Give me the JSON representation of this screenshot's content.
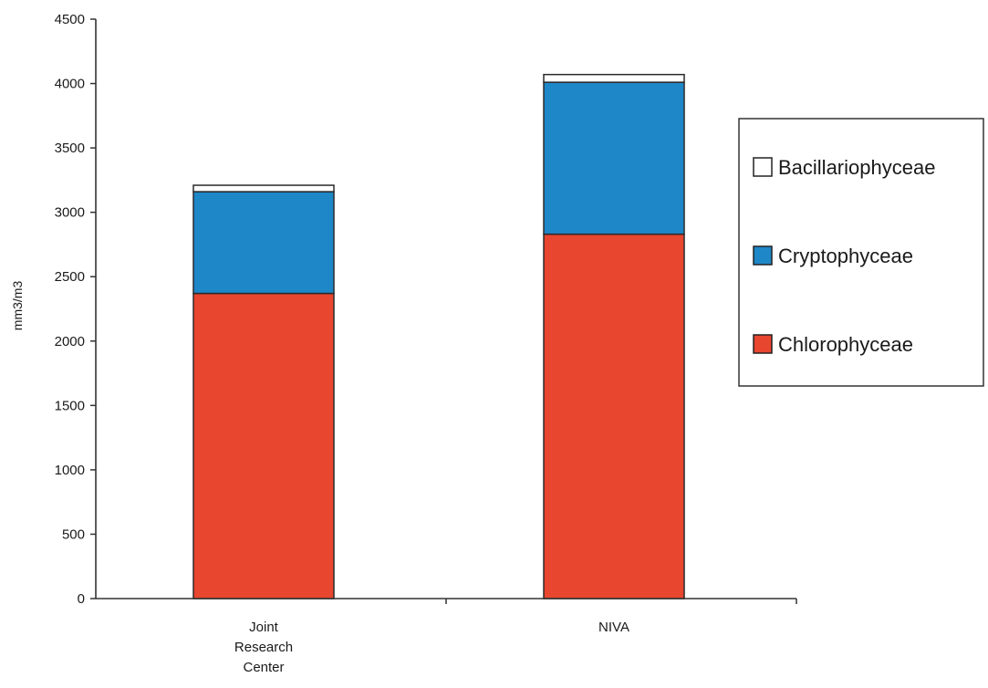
{
  "chart_data": {
    "type": "bar",
    "stacked": true,
    "title": "",
    "xlabel": "",
    "ylabel": "mm3/m3",
    "ylim": [
      0,
      4500
    ],
    "yticks": [
      0,
      500,
      1000,
      1500,
      2000,
      2500,
      3000,
      3500,
      4000,
      4500
    ],
    "grid": false,
    "legend_position": "right",
    "categories": [
      [
        "Joint",
        "Research",
        "Center"
      ],
      [
        "NIVA"
      ]
    ],
    "series": [
      {
        "name": "Chlorophyceae",
        "color": "#e8462f",
        "values": [
          2370,
          2830
        ]
      },
      {
        "name": "Cryptophyceae",
        "color": "#1e87c8",
        "values": [
          790,
          1180
        ]
      },
      {
        "name": "Bacillariophyceae",
        "color": "#ffffff",
        "values": [
          50,
          60
        ]
      }
    ],
    "legend_order": [
      "Bacillariophyceae",
      "Cryptophyceae",
      "Chlorophyceae"
    ]
  }
}
